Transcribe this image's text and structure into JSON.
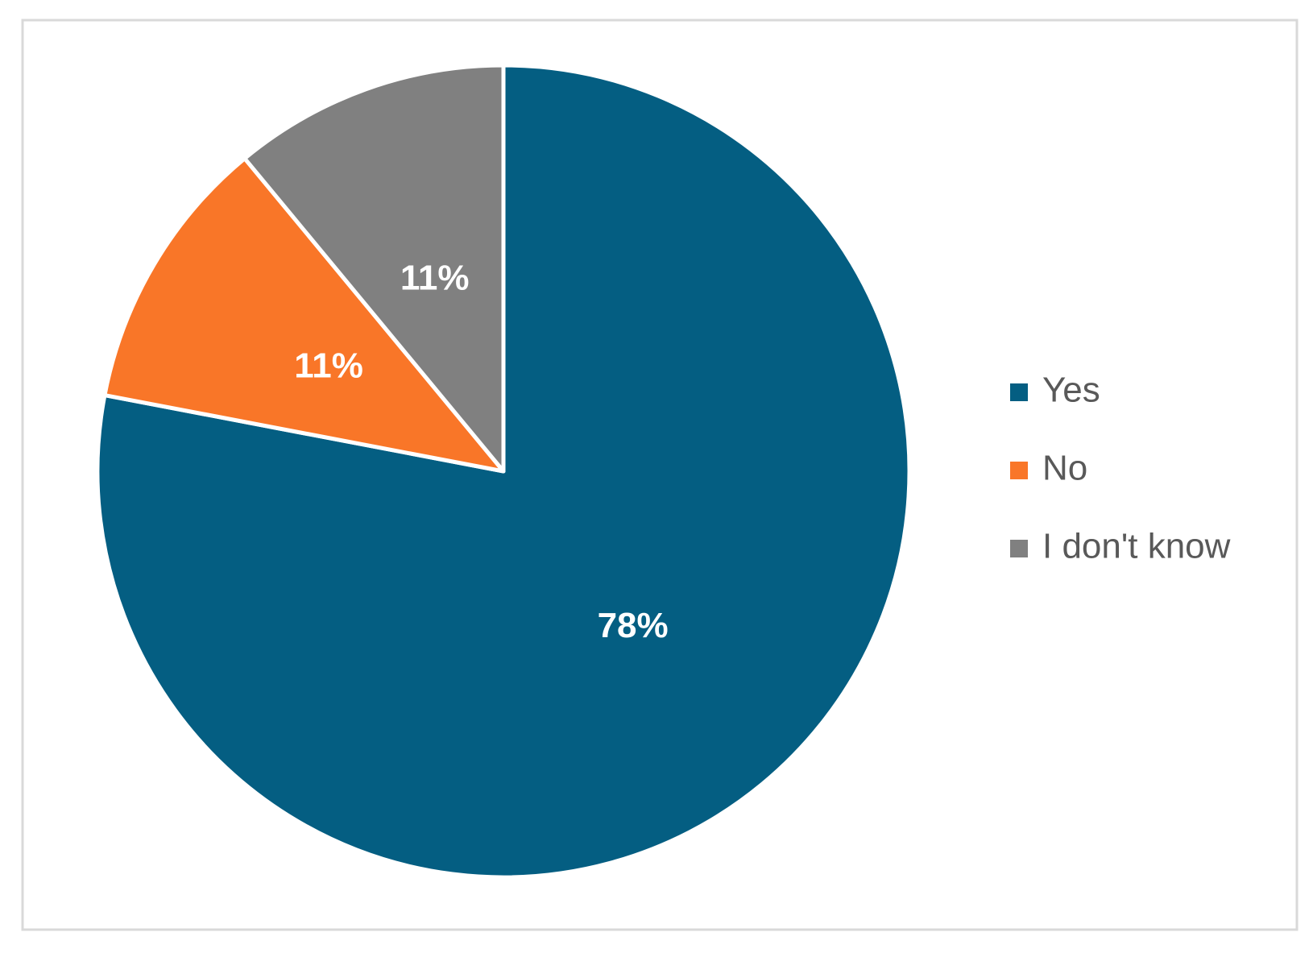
{
  "chart_data": {
    "type": "pie",
    "categories": [
      "Yes",
      "No",
      "I don't know"
    ],
    "values": [
      78,
      11,
      11
    ],
    "value_labels": [
      "78%",
      "11%",
      "11%"
    ],
    "colors": [
      "#045e82",
      "#f97628",
      "#808080"
    ],
    "legend": "right"
  }
}
